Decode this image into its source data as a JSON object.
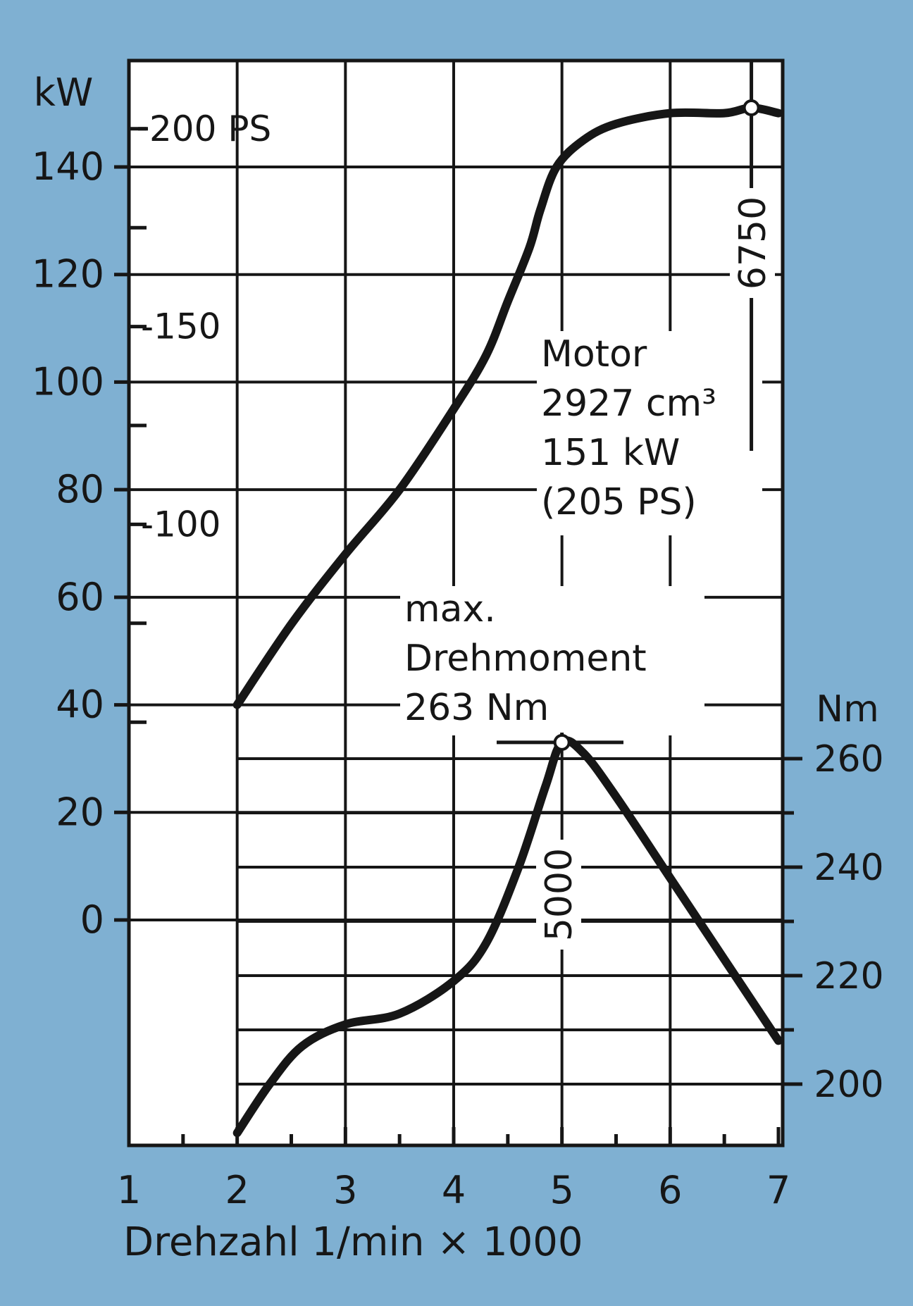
{
  "chart_data": {
    "type": "line",
    "xlabel": "Drehzahl 1/min × 1000",
    "x_ticks": [
      "1",
      "2",
      "3",
      "4",
      "5",
      "6",
      "7"
    ],
    "xlim": [
      1,
      7
    ],
    "left_axis_unit": "kW",
    "left_ticks": [
      "0",
      "20",
      "40",
      "60",
      "80",
      "100",
      "120",
      "140"
    ],
    "ylim_kw": [
      -40,
      160
    ],
    "ps_ticks": [
      {
        "label": "-100",
        "ps": 100
      },
      {
        "label": "-150",
        "ps": 150
      },
      {
        "label": "200 PS",
        "ps": 200
      }
    ],
    "right_axis_unit": "Nm",
    "right_ticks": [
      "200",
      "220",
      "240",
      "260"
    ],
    "ylim_nm": [
      190,
      265
    ],
    "grid": true,
    "series": [
      {
        "axis": "left",
        "points": [
          [
            2.0,
            40
          ],
          [
            2.5,
            55
          ],
          [
            3.0,
            68
          ],
          [
            3.5,
            80
          ],
          [
            4.0,
            95
          ],
          [
            4.3,
            105
          ],
          [
            4.5,
            115
          ],
          [
            4.7,
            125
          ],
          [
            4.8,
            132
          ],
          [
            4.95,
            140
          ],
          [
            5.2,
            145
          ],
          [
            5.5,
            148
          ],
          [
            6.0,
            150
          ],
          [
            6.5,
            150
          ],
          [
            6.75,
            151
          ],
          [
            7.0,
            150
          ]
        ]
      },
      {
        "axis": "right",
        "points": [
          [
            2.0,
            191
          ],
          [
            2.3,
            200
          ],
          [
            2.6,
            207
          ],
          [
            3.0,
            211
          ],
          [
            3.5,
            213
          ],
          [
            4.0,
            219
          ],
          [
            4.3,
            226
          ],
          [
            4.6,
            240
          ],
          [
            4.85,
            255
          ],
          [
            5.0,
            263
          ],
          [
            5.2,
            261
          ],
          [
            5.5,
            253
          ],
          [
            6.0,
            238
          ],
          [
            6.5,
            223
          ],
          [
            7.0,
            208
          ]
        ]
      }
    ],
    "annotations": {
      "peak_power_rpm_label": "6750",
      "peak_torque_rpm_label": "5000",
      "motor_lines": [
        "Motor",
        "2927 cm³",
        "151 kW",
        "(205 PS)"
      ],
      "torque_lines": [
        "max.",
        "Drehmoment",
        "263 Nm"
      ]
    }
  }
}
